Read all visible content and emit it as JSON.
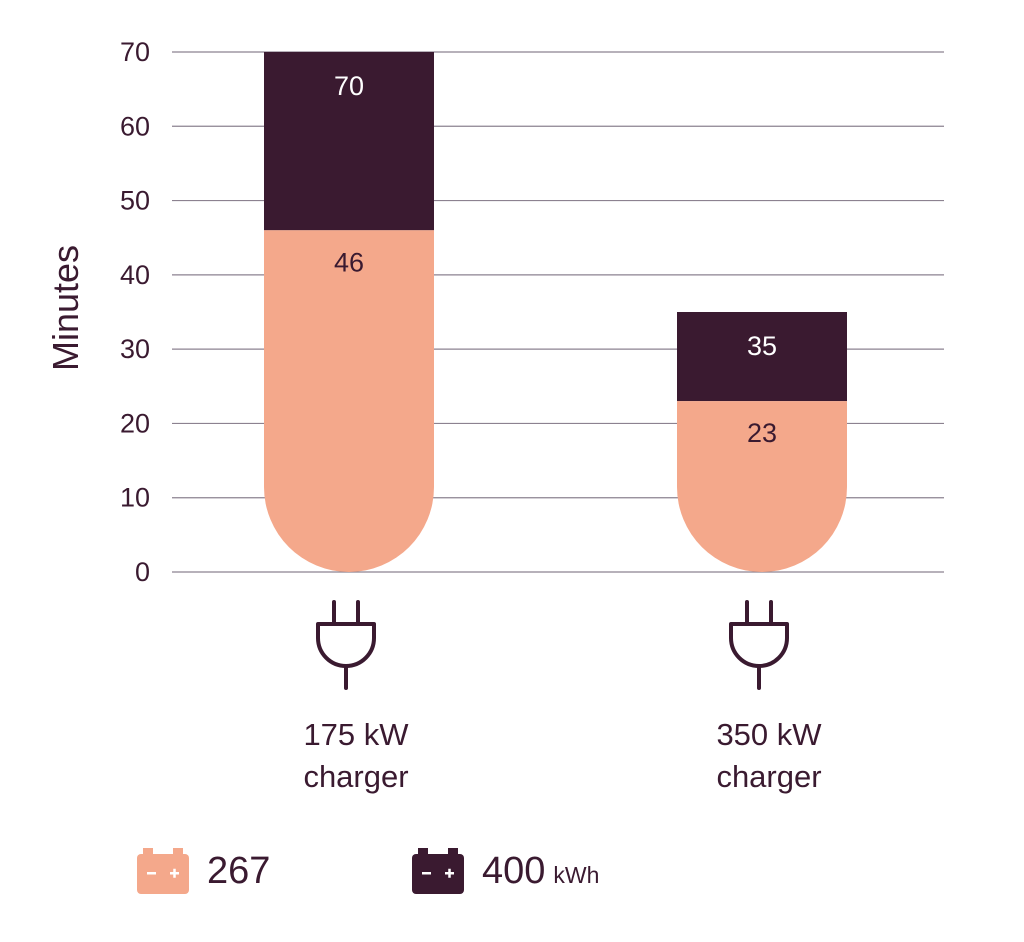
{
  "chart_data": {
    "type": "bar",
    "ylabel": "Minutes",
    "ylim": [
      0,
      70
    ],
    "yticks": [
      0,
      10,
      20,
      30,
      40,
      50,
      60,
      70
    ],
    "categories": [
      {
        "line1": "175 kW",
        "line2": "charger"
      },
      {
        "line1": "350 kW",
        "line2": "charger"
      }
    ],
    "series": [
      {
        "name": "267",
        "color": "#f4a88b",
        "values": [
          46,
          23
        ]
      },
      {
        "name": "400",
        "unit": "kWh",
        "color": "#3a1a30",
        "values": [
          70,
          35
        ]
      }
    ],
    "grid": true,
    "legend_position": "bottom-left"
  },
  "icons": {
    "category_icon": "plug-icon",
    "legend_icon": "battery-icon"
  },
  "legend": {
    "items": [
      {
        "value": "267",
        "unit": "",
        "color": "#f4a88b"
      },
      {
        "value": "400",
        "unit": "kWh",
        "color": "#3a1a30"
      }
    ]
  },
  "colors": {
    "text": "#3a1a30",
    "grid": "#8c8290"
  }
}
